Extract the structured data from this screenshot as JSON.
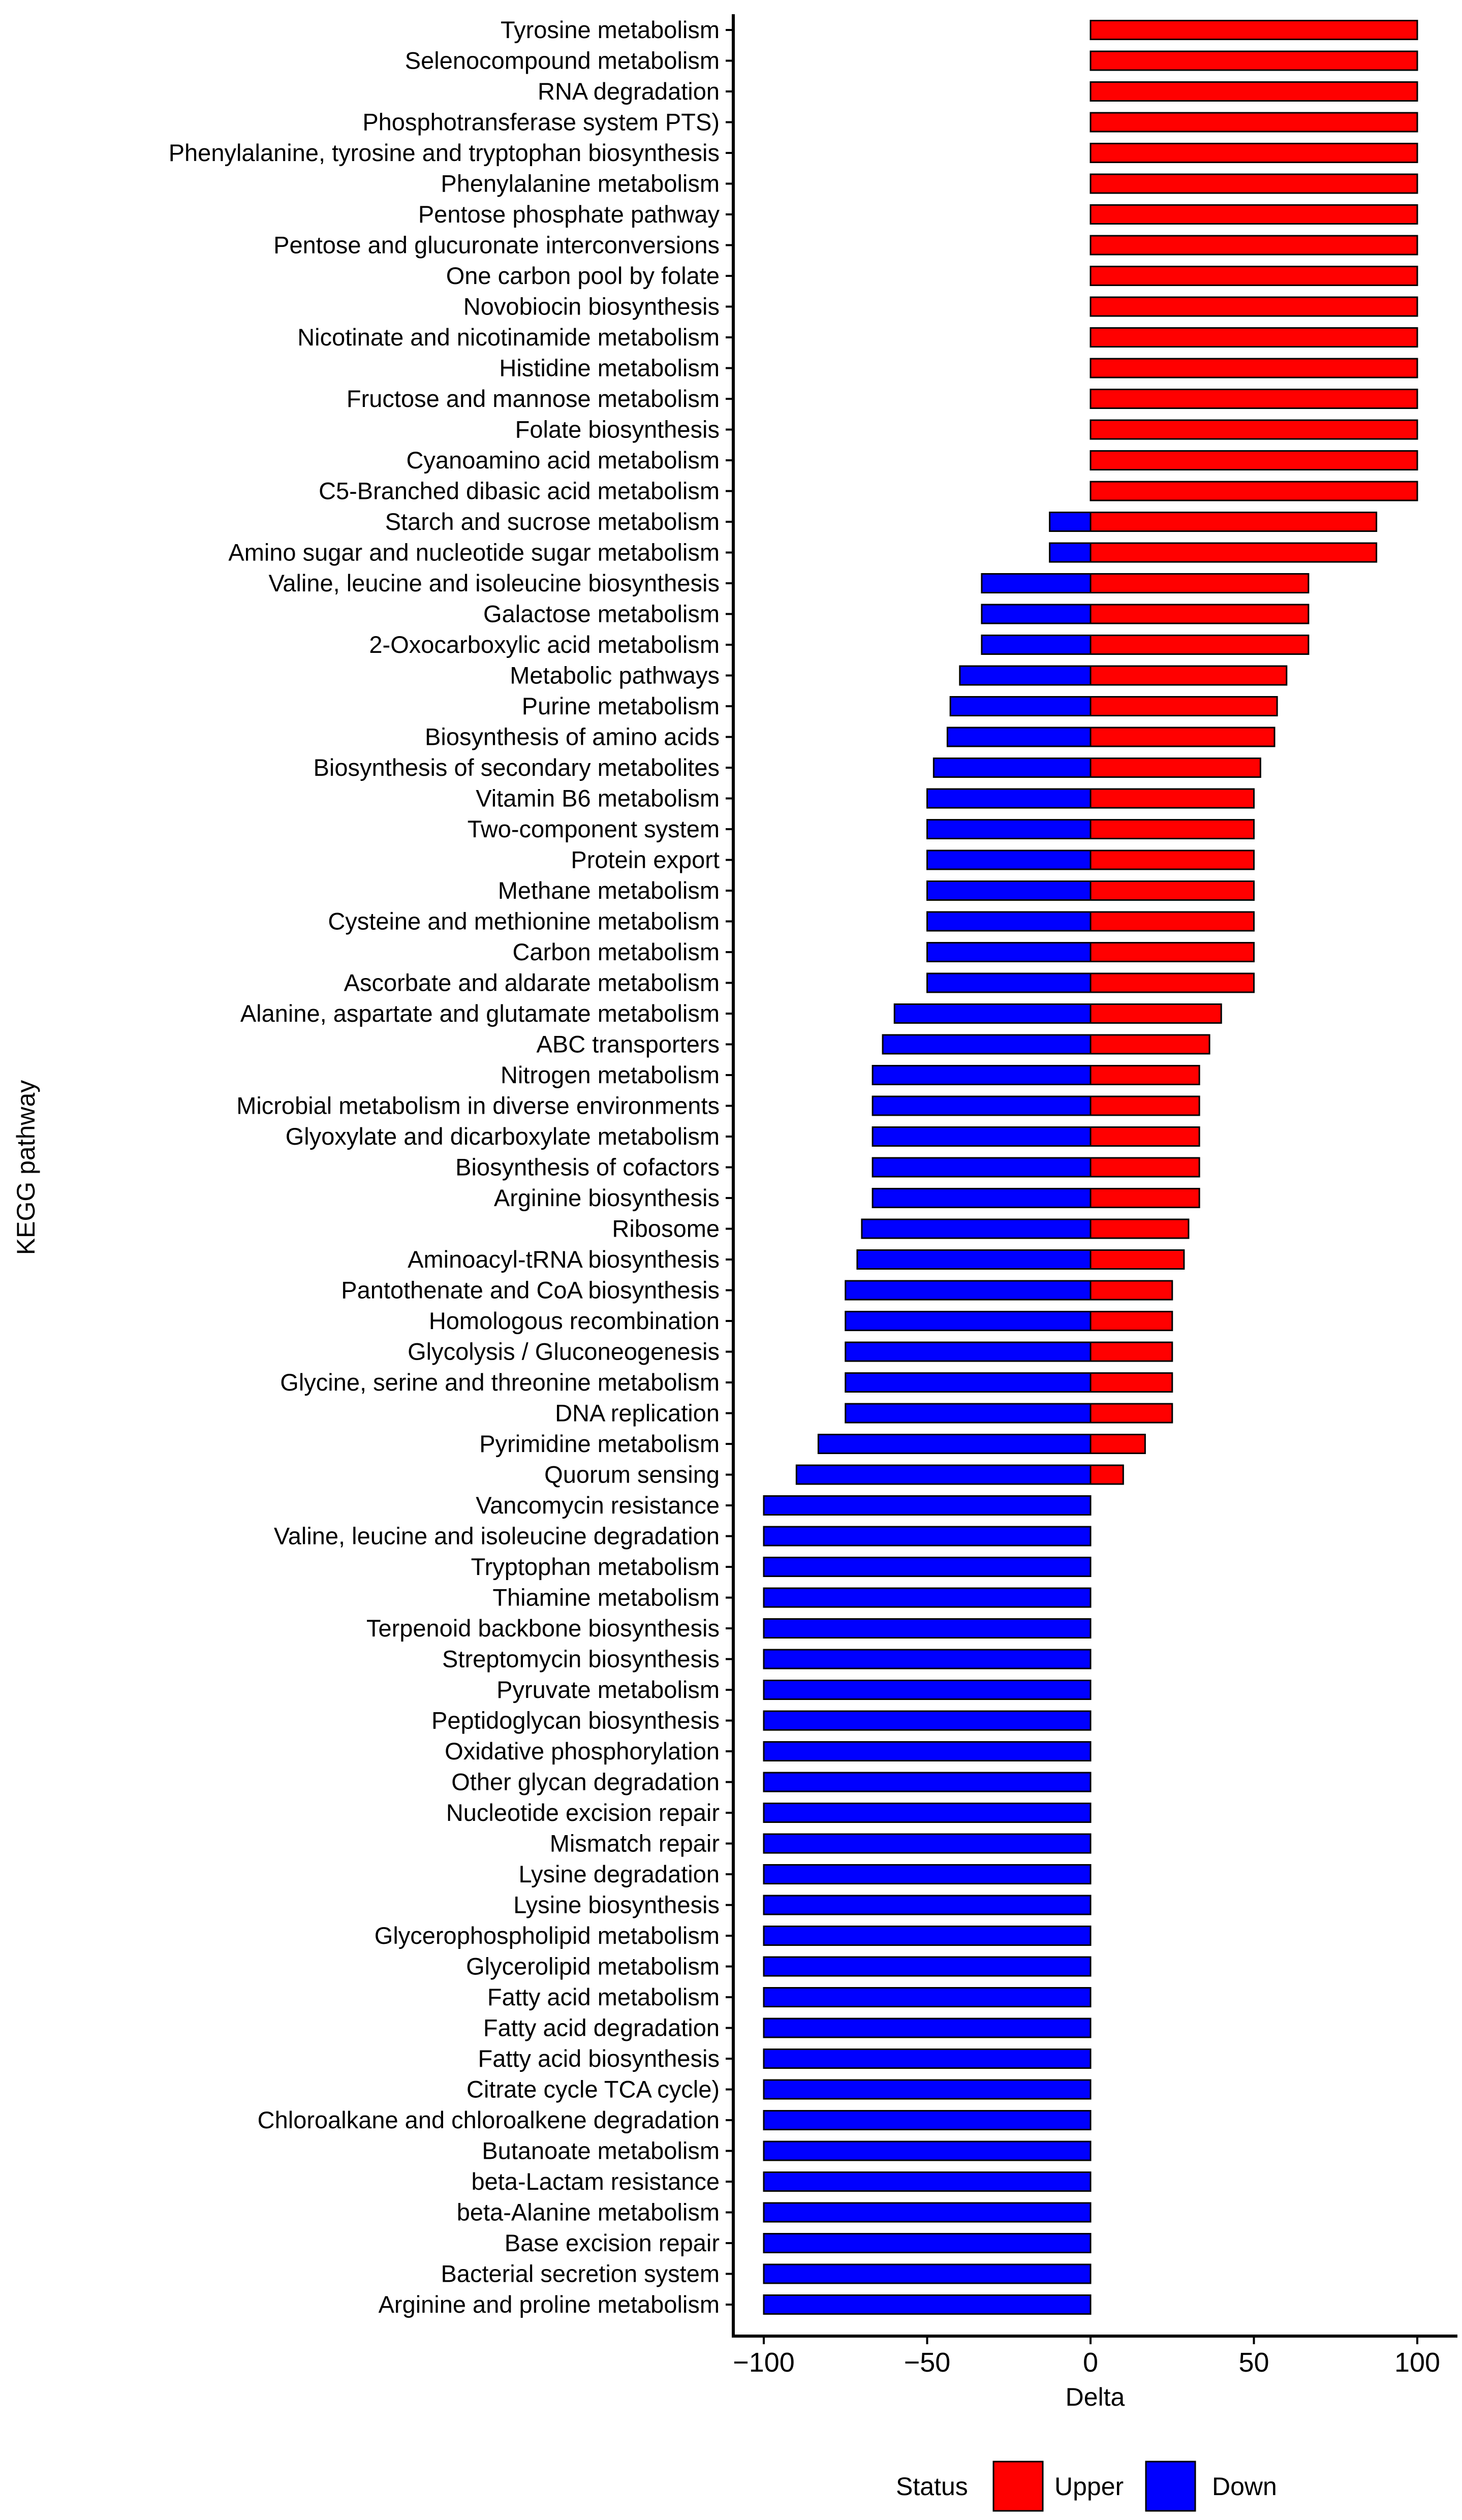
{
  "chart_data": {
    "type": "bar",
    "orientation": "horizontal",
    "title": "",
    "xlabel": "Delta",
    "ylabel": "KEGG pathway",
    "xlim": [
      -100,
      100
    ],
    "xticks": [
      -100,
      -50,
      0,
      50,
      100
    ],
    "xtick_labels": [
      "−100",
      "−50",
      "0",
      "50",
      "100"
    ],
    "grid": false,
    "colors": {
      "Upper": "#ff0000",
      "Down": "#0000ff",
      "edge": "#000000"
    },
    "legend": {
      "title": "Status",
      "position": "bottom",
      "entries": [
        "Upper",
        "Down"
      ]
    },
    "categories": [
      "Tyrosine metabolism",
      "Selenocompound metabolism",
      "RNA degradation",
      "Phosphotransferase system PTS)",
      "Phenylalanine, tyrosine and tryptophan biosynthesis",
      "Phenylalanine metabolism",
      "Pentose phosphate pathway",
      "Pentose and glucuronate interconversions",
      "One carbon pool by folate",
      "Novobiocin biosynthesis",
      "Nicotinate and nicotinamide metabolism",
      "Histidine metabolism",
      "Fructose and mannose metabolism",
      "Folate biosynthesis",
      "Cyanoamino acid metabolism",
      "C5-Branched dibasic acid metabolism",
      "Starch and sucrose metabolism",
      "Amino sugar and nucleotide sugar metabolism",
      "Valine, leucine and isoleucine biosynthesis",
      "Galactose metabolism",
      "2-Oxocarboxylic acid metabolism",
      "Metabolic pathways",
      "Purine metabolism",
      "Biosynthesis of amino acids",
      "Biosynthesis of secondary metabolites",
      "Vitamin B6 metabolism",
      "Two-component system",
      "Protein export",
      "Methane metabolism",
      "Cysteine and methionine metabolism",
      "Carbon metabolism",
      "Ascorbate and aldarate metabolism",
      "Alanine, aspartate and glutamate metabolism",
      "ABC transporters",
      "Nitrogen metabolism",
      "Microbial metabolism in diverse environments",
      "Glyoxylate and dicarboxylate metabolism",
      "Biosynthesis of cofactors",
      "Arginine biosynthesis",
      "Ribosome",
      "Aminoacyl-tRNA biosynthesis",
      "Pantothenate and CoA biosynthesis",
      "Homologous recombination",
      "Glycolysis / Gluconeogenesis",
      "Glycine, serine and threonine metabolism",
      "DNA replication",
      "Pyrimidine metabolism",
      "Quorum sensing",
      "Vancomycin resistance",
      "Valine, leucine and isoleucine degradation",
      "Tryptophan metabolism",
      "Thiamine metabolism",
      "Terpenoid backbone biosynthesis",
      "Streptomycin biosynthesis",
      "Pyruvate metabolism",
      "Peptidoglycan biosynthesis",
      "Oxidative phosphorylation",
      "Other glycan degradation",
      "Nucleotide excision repair",
      "Mismatch repair",
      "Lysine degradation",
      "Lysine biosynthesis",
      "Glycerophospholipid metabolism",
      "Glycerolipid metabolism",
      "Fatty acid metabolism",
      "Fatty acid degradation",
      "Fatty acid biosynthesis",
      "Citrate cycle TCA cycle)",
      "Chloroalkane and chloroalkene degradation",
      "Butanoate metabolism",
      "beta-Lactam resistance",
      "beta-Alanine metabolism",
      "Base excision repair",
      "Bacterial secretion system",
      "Arginine and proline metabolism"
    ],
    "series": [
      {
        "name": "Upper",
        "values": [
          100,
          100,
          100,
          100,
          100,
          100,
          100,
          100,
          100,
          100,
          100,
          100,
          100,
          100,
          100,
          100,
          87.5,
          87.5,
          66.7,
          66.7,
          66.7,
          60,
          57.1,
          56.3,
          52,
          50,
          50,
          50,
          50,
          50,
          50,
          50,
          40,
          36.4,
          33.3,
          33.3,
          33.3,
          33.3,
          33.3,
          30,
          28.6,
          25,
          25,
          25,
          25,
          25,
          16.7,
          10,
          0,
          0,
          0,
          0,
          0,
          0,
          0,
          0,
          0,
          0,
          0,
          0,
          0,
          0,
          0,
          0,
          0,
          0,
          0,
          0,
          0,
          0,
          0,
          0,
          0,
          0,
          0
        ]
      },
      {
        "name": "Down",
        "values": [
          0,
          0,
          0,
          0,
          0,
          0,
          0,
          0,
          0,
          0,
          0,
          0,
          0,
          0,
          0,
          0,
          -12.5,
          -12.5,
          -33.3,
          -33.3,
          -33.3,
          -40,
          -42.9,
          -43.8,
          -48,
          -50,
          -50,
          -50,
          -50,
          -50,
          -50,
          -50,
          -60,
          -63.6,
          -66.7,
          -66.7,
          -66.7,
          -66.7,
          -66.7,
          -70,
          -71.4,
          -75,
          -75,
          -75,
          -75,
          -75,
          -83.3,
          -90,
          -100,
          -100,
          -100,
          -100,
          -100,
          -100,
          -100,
          -100,
          -100,
          -100,
          -100,
          -100,
          -100,
          -100,
          -100,
          -100,
          -100,
          -100,
          -100,
          -100,
          -100,
          -100,
          -100,
          -100,
          -100,
          -100,
          -100
        ]
      }
    ]
  }
}
